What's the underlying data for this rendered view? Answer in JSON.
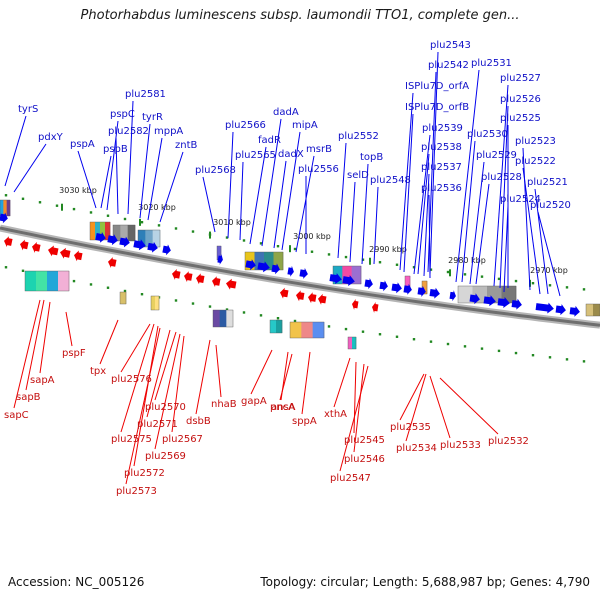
{
  "title": "Photorhabdus luminescens subsp. laumondii TTO1, complete gen...",
  "footer": {
    "accession": "Accession: NC_005126",
    "summary": "Topology: circular; Length: 5,688,987 bp; Genes: 4,790"
  },
  "colors": {
    "forward_gene": "#0000ee",
    "reverse_gene": "#ee0000",
    "backbone": "#888888",
    "tick": "#228822"
  },
  "scale_ticks": [
    "3030 kbp",
    "3020 kbp",
    "3010 kbp",
    "3000 kbp",
    "2990 kbp",
    "2980 kbp",
    "2970 kbp"
  ],
  "forward_labels": [
    "tyrS",
    "pdxY",
    "pspA",
    "pspB",
    "pspC",
    "plu2582",
    "plu2581",
    "tyrR",
    "mppA",
    "zntB",
    "plu2568",
    "plu2566",
    "plu2565",
    "fadR",
    "dadA",
    "dadX",
    "mipA",
    "msrB",
    "plu2556",
    "plu2552",
    "selD",
    "topB",
    "plu2548",
    "plu2543",
    "plu2542",
    "ISPlu7D_orfA",
    "ISPlu7D_orfB",
    "plu2539",
    "plu2538",
    "plu2537",
    "plu2536",
    "plu2531",
    "plu2530",
    "plu2529",
    "plu2528",
    "plu2527",
    "plu2526",
    "plu2525",
    "plu2524",
    "plu2523",
    "plu2522",
    "plu2521",
    "plu2520"
  ],
  "reverse_labels": [
    "sapC",
    "sapB",
    "sapA",
    "pspF",
    "tpx",
    "plu2576",
    "plu2575",
    "plu2572",
    "plu2573",
    "plu2571",
    "plu2570",
    "plu2569",
    "plu2567",
    "dsbB",
    "nhaB",
    "gapA",
    "ansA",
    "pncA",
    "sppA",
    "xthA",
    "plu2545",
    "plu2546",
    "plu2547",
    "plu2535",
    "plu2534",
    "plu2533",
    "plu2532"
  ]
}
